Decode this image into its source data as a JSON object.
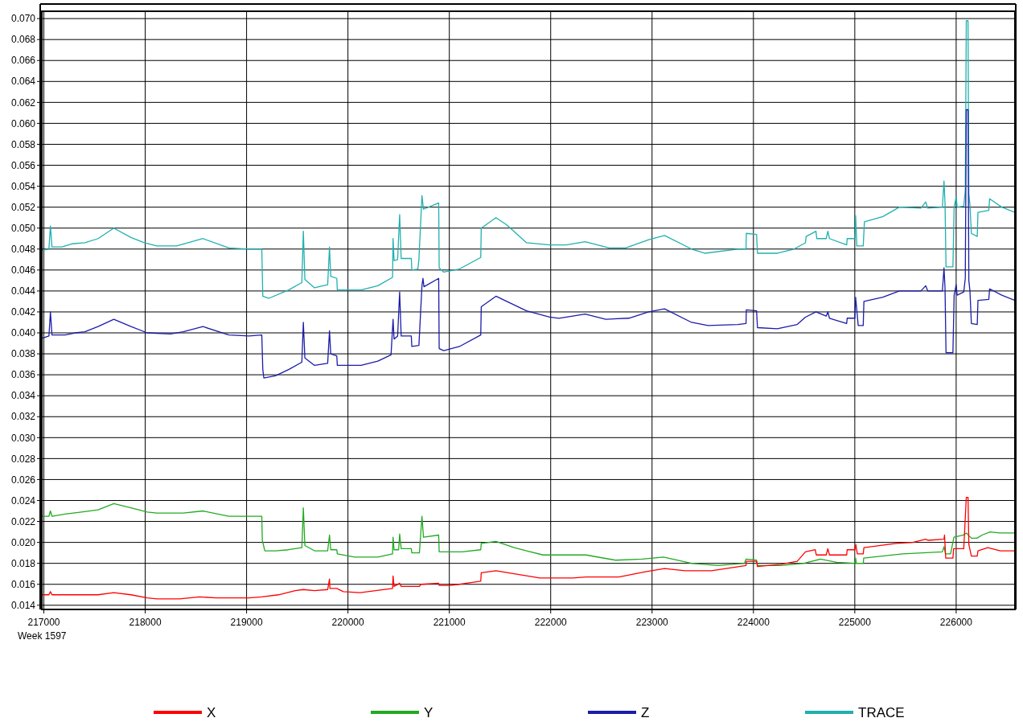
{
  "chart_data": {
    "type": "line",
    "xlabel": "Week 1597",
    "xlim": [
      216980,
      226580
    ],
    "xticks": [
      217000,
      218000,
      219000,
      220000,
      221000,
      222000,
      223000,
      224000,
      225000,
      226000
    ],
    "ylim": [
      0.0136,
      0.0707
    ],
    "yticks": [
      0.014,
      0.016,
      0.018,
      {
        "value": 0.02,
        "label": "0.020"
      },
      0.022,
      0.024,
      0.026,
      0.028,
      {
        "value": 0.03,
        "label": "0.030"
      },
      0.032,
      0.034,
      0.036,
      0.038,
      {
        "value": 0.04,
        "label": "0.040"
      },
      0.042,
      0.044,
      0.046,
      0.048,
      {
        "value": 0.05,
        "label": "0.050"
      },
      0.052,
      0.054,
      0.056,
      0.058,
      {
        "value": 0.06,
        "label": "0.060"
      },
      0.062,
      0.064,
      0.066,
      0.068,
      {
        "value": 0.07,
        "label": "0.070"
      }
    ],
    "grid": true,
    "legend": "bottom",
    "marker": "none",
    "line_style": "solid",
    "series": [
      {
        "name": "X",
        "color": "#ff0000",
        "x": [
          216985,
          217050,
          217065,
          217080,
          217535,
          217690,
          217860,
          218020,
          218115,
          218340,
          218535,
          218700,
          219025,
          219150,
          219315,
          219480,
          219560,
          219670,
          219800,
          219818,
          219822,
          219830,
          219890,
          219955,
          220120,
          220440,
          220445,
          220455,
          220510,
          220525,
          220705,
          220720,
          220895,
          220900,
          221000,
          221100,
          221310,
          221315,
          221460,
          221640,
          221893,
          222218,
          222348,
          222674,
          222934,
          223123,
          223325,
          223585,
          223927,
          223930,
          224031,
          224040,
          224270,
          224432,
          224513,
          224610,
          224620,
          224718,
          224734,
          224750,
          224920,
          224925,
          225001,
          225010,
          225025,
          225083,
          225090,
          225408,
          225571,
          225700,
          225720,
          225880,
          225885,
          225897,
          225968,
          225975,
          226075,
          226100,
          226117,
          226125,
          226150,
          226208,
          226215,
          226312,
          226436,
          226580
        ],
        "values": [
          0.015,
          0.015,
          0.0153,
          0.015,
          0.015,
          0.0152,
          0.015,
          0.0147,
          0.0146,
          0.0146,
          0.0148,
          0.0147,
          0.0147,
          0.0148,
          0.015,
          0.0154,
          0.0155,
          0.0154,
          0.0155,
          0.0165,
          0.0156,
          0.0156,
          0.0156,
          0.0153,
          0.0152,
          0.0156,
          0.0168,
          0.0158,
          0.0161,
          0.0158,
          0.0158,
          0.016,
          0.0161,
          0.0159,
          0.0159,
          0.016,
          0.0163,
          0.0171,
          0.0173,
          0.017,
          0.0166,
          0.0166,
          0.0167,
          0.0167,
          0.0172,
          0.0175,
          0.0173,
          0.0173,
          0.0178,
          0.0182,
          0.0182,
          0.0177,
          0.0179,
          0.0182,
          0.0191,
          0.0193,
          0.0188,
          0.0188,
          0.0194,
          0.0188,
          0.0188,
          0.0193,
          0.0193,
          0.0198,
          0.0189,
          0.0189,
          0.0195,
          0.0199,
          0.02,
          0.0203,
          0.0202,
          0.0203,
          0.0207,
          0.0185,
          0.0185,
          0.0194,
          0.0194,
          0.0243,
          0.0243,
          0.0198,
          0.0187,
          0.0187,
          0.0192,
          0.0195,
          0.0192,
          0.0192
        ]
      },
      {
        "name": "Y",
        "color": "#22aa22",
        "x": [
          216985,
          217050,
          217065,
          217080,
          217210,
          217370,
          217535,
          217690,
          217860,
          218020,
          218115,
          218375,
          218570,
          218825,
          219150,
          219155,
          219180,
          219285,
          219415,
          219545,
          219560,
          219575,
          219670,
          219800,
          219818,
          219830,
          219890,
          219895,
          220065,
          220295,
          220440,
          220445,
          220455,
          220500,
          220510,
          220525,
          220625,
          220630,
          220705,
          220730,
          220745,
          220895,
          220900,
          221125,
          221310,
          221315,
          221460,
          221640,
          221762,
          221925,
          222348,
          222641,
          222902,
          223113,
          223390,
          223650,
          223911,
          223927,
          224031,
          224040,
          224270,
          224497,
          224660,
          224822,
          225001,
          225008,
          225015,
          225083,
          225088,
          225473,
          225864,
          225880,
          225895,
          225945,
          225978,
          226075,
          226100,
          226150,
          226206,
          226255,
          226335,
          226433,
          226580
        ],
        "values": [
          0.0225,
          0.0225,
          0.023,
          0.0225,
          0.0227,
          0.0229,
          0.0231,
          0.0237,
          0.0233,
          0.0229,
          0.0228,
          0.0228,
          0.023,
          0.0225,
          0.0225,
          0.0202,
          0.0192,
          0.0192,
          0.0193,
          0.0195,
          0.0233,
          0.0197,
          0.0192,
          0.0192,
          0.0207,
          0.0193,
          0.0193,
          0.0189,
          0.0186,
          0.0186,
          0.0189,
          0.0205,
          0.0193,
          0.0193,
          0.0208,
          0.0194,
          0.0194,
          0.019,
          0.019,
          0.0225,
          0.0205,
          0.0207,
          0.0191,
          0.0191,
          0.0193,
          0.0199,
          0.0201,
          0.0195,
          0.0192,
          0.0188,
          0.0188,
          0.0183,
          0.0184,
          0.0186,
          0.018,
          0.0178,
          0.018,
          0.0184,
          0.0183,
          0.0178,
          0.0178,
          0.018,
          0.0184,
          0.0181,
          0.018,
          0.0185,
          0.018,
          0.018,
          0.0185,
          0.0189,
          0.0191,
          0.0196,
          0.0189,
          0.0189,
          0.0205,
          0.0207,
          0.0209,
          0.0204,
          0.0204,
          0.0207,
          0.021,
          0.0209,
          0.0209
        ]
      },
      {
        "name": "Z",
        "color": "#1c1caa",
        "x": [
          216985,
          217050,
          217065,
          217080,
          217210,
          217310,
          217405,
          217535,
          217690,
          217860,
          218020,
          218250,
          218375,
          218570,
          218825,
          219025,
          219150,
          219160,
          219170,
          219285,
          219415,
          219545,
          219560,
          219575,
          219670,
          219800,
          219818,
          219830,
          219890,
          219895,
          220130,
          220295,
          220425,
          220445,
          220455,
          220490,
          220510,
          220525,
          220625,
          220630,
          220700,
          220730,
          220740,
          220750,
          220895,
          220900,
          220945,
          221100,
          221310,
          221315,
          221460,
          221567,
          221762,
          221990,
          222081,
          222340,
          222544,
          222771,
          222967,
          223123,
          223390,
          223553,
          223845,
          223927,
          223930,
          224031,
          224040,
          224236,
          224432,
          224513,
          224617,
          224718,
          224734,
          224750,
          224920,
          224925,
          225001,
          225008,
          225034,
          225083,
          225090,
          225277,
          225440,
          225652,
          225700,
          225720,
          225864,
          225880,
          225890,
          225900,
          225968,
          225980,
          226000,
          226010,
          226075,
          226090,
          226100,
          226117,
          226125,
          226136,
          226150,
          226208,
          226215,
          226322,
          226330,
          226450,
          226580
        ],
        "values": [
          0.0395,
          0.0397,
          0.042,
          0.0398,
          0.0398,
          0.04,
          0.0401,
          0.0406,
          0.0413,
          0.0406,
          0.04,
          0.0399,
          0.0401,
          0.0406,
          0.0398,
          0.0397,
          0.0398,
          0.0365,
          0.0357,
          0.0359,
          0.0365,
          0.0372,
          0.041,
          0.0376,
          0.0369,
          0.0371,
          0.0402,
          0.038,
          0.0378,
          0.0369,
          0.0369,
          0.0373,
          0.0379,
          0.0413,
          0.0394,
          0.0397,
          0.0439,
          0.0397,
          0.0397,
          0.0387,
          0.0388,
          0.0445,
          0.0452,
          0.0444,
          0.0452,
          0.0385,
          0.0383,
          0.0387,
          0.0398,
          0.0425,
          0.0435,
          0.043,
          0.0421,
          0.0415,
          0.0414,
          0.0418,
          0.0413,
          0.0414,
          0.042,
          0.0423,
          0.041,
          0.0407,
          0.0408,
          0.0409,
          0.0422,
          0.0421,
          0.0405,
          0.0404,
          0.0408,
          0.0415,
          0.042,
          0.0416,
          0.042,
          0.0414,
          0.0409,
          0.0414,
          0.0414,
          0.0434,
          0.0407,
          0.0407,
          0.043,
          0.0434,
          0.044,
          0.044,
          0.0445,
          0.044,
          0.044,
          0.0462,
          0.0443,
          0.0381,
          0.0381,
          0.0436,
          0.0446,
          0.0436,
          0.0439,
          0.0452,
          0.0613,
          0.0613,
          0.045,
          0.044,
          0.0409,
          0.0408,
          0.0431,
          0.0432,
          0.0442,
          0.0436,
          0.0431
        ]
      },
      {
        "name": "TRACE",
        "color": "#20b0b0",
        "x": [
          216985,
          217050,
          217065,
          217080,
          217180,
          217275,
          217405,
          217535,
          217690,
          217860,
          217990,
          218115,
          218310,
          218570,
          218825,
          219025,
          219150,
          219160,
          219220,
          219415,
          219545,
          219560,
          219575,
          219670,
          219800,
          219818,
          219830,
          219890,
          219895,
          220000,
          220130,
          220295,
          220440,
          220445,
          220455,
          220490,
          220510,
          220525,
          220625,
          220630,
          220690,
          220700,
          220730,
          220745,
          220895,
          220900,
          220945,
          221100,
          221310,
          221315,
          221460,
          221567,
          221762,
          221990,
          222153,
          222340,
          222576,
          222740,
          222967,
          223123,
          223390,
          223520,
          223845,
          223927,
          223930,
          224031,
          224040,
          224236,
          224400,
          224513,
          224520,
          224617,
          224625,
          224718,
          224734,
          224750,
          224920,
          224925,
          225001,
          225008,
          225020,
          225083,
          225095,
          225277,
          225440,
          225652,
          225700,
          225720,
          225864,
          225880,
          225890,
          225900,
          225968,
          225980,
          226000,
          226010,
          226075,
          226090,
          226100,
          226117,
          226125,
          226136,
          226150,
          226208,
          226215,
          226322,
          226330,
          226450,
          226580
        ],
        "values": [
          0.0479,
          0.048,
          0.0502,
          0.0482,
          0.0482,
          0.0485,
          0.0486,
          0.049,
          0.05,
          0.0491,
          0.0486,
          0.0483,
          0.0483,
          0.049,
          0.0481,
          0.048,
          0.048,
          0.0435,
          0.0433,
          0.0441,
          0.0448,
          0.0497,
          0.0451,
          0.0443,
          0.0446,
          0.0482,
          0.0454,
          0.0452,
          0.0441,
          0.0441,
          0.0441,
          0.0445,
          0.0453,
          0.049,
          0.0469,
          0.047,
          0.0513,
          0.0471,
          0.0471,
          0.046,
          0.0461,
          0.047,
          0.0531,
          0.0518,
          0.0524,
          0.0462,
          0.0458,
          0.0461,
          0.0472,
          0.05,
          0.051,
          0.0503,
          0.0486,
          0.0484,
          0.0484,
          0.0487,
          0.0481,
          0.0481,
          0.0489,
          0.0493,
          0.048,
          0.0476,
          0.048,
          0.048,
          0.0495,
          0.0494,
          0.0476,
          0.0476,
          0.048,
          0.0486,
          0.0492,
          0.0497,
          0.049,
          0.049,
          0.0497,
          0.049,
          0.0484,
          0.049,
          0.049,
          0.0512,
          0.0483,
          0.0483,
          0.0506,
          0.0511,
          0.052,
          0.0519,
          0.0525,
          0.0519,
          0.052,
          0.0545,
          0.0524,
          0.0463,
          0.0463,
          0.052,
          0.053,
          0.052,
          0.0521,
          0.0536,
          0.0698,
          0.0698,
          0.0533,
          0.0522,
          0.0495,
          0.0492,
          0.0515,
          0.0517,
          0.0528,
          0.052,
          0.0515
        ]
      }
    ]
  }
}
